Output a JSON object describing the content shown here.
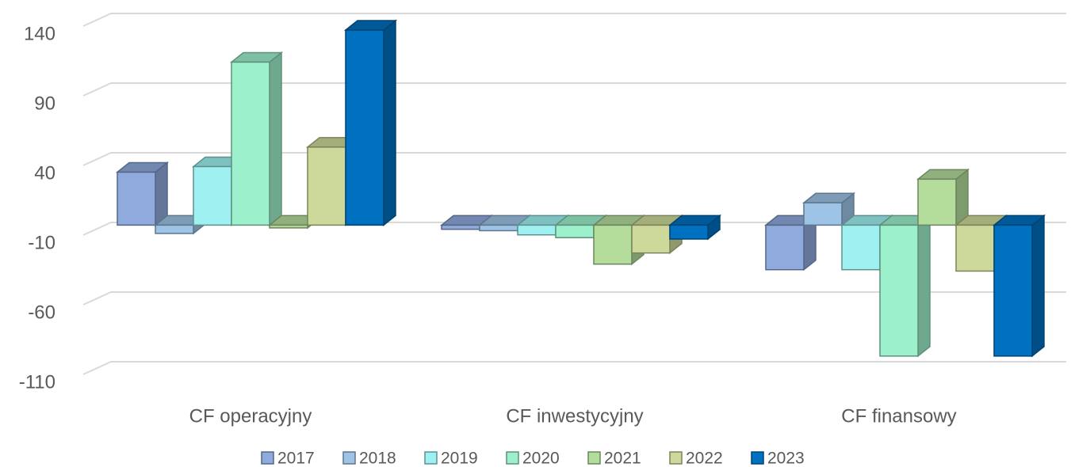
{
  "chart_data": {
    "type": "bar3d",
    "categories": [
      "CF operacyjny",
      "CF inwestycyjny",
      "CF finansowy"
    ],
    "series": [
      {
        "name": "2017",
        "color": "#8faadc",
        "values": [
          38,
          -3,
          -32
        ]
      },
      {
        "name": "2018",
        "color": "#9dc3e6",
        "values": [
          -6,
          -4,
          16
        ]
      },
      {
        "name": "2019",
        "color": "#9ff0f0",
        "values": [
          42,
          -7,
          -32
        ]
      },
      {
        "name": "2020",
        "color": "#9cf0cc",
        "values": [
          117,
          -9,
          -94
        ]
      },
      {
        "name": "2021",
        "color": "#b4dd9c",
        "values": [
          -2,
          -28,
          33
        ]
      },
      {
        "name": "2022",
        "color": "#cdd99a",
        "values": [
          56,
          -20,
          -33
        ]
      },
      {
        "name": "2023",
        "color": "#0070c0",
        "values": [
          140,
          -10,
          -94
        ]
      }
    ],
    "ylim": [
      -110,
      140
    ],
    "yticks": [
      -110,
      -60,
      -10,
      40,
      90,
      140
    ],
    "grid": true,
    "legend": "bottom"
  }
}
